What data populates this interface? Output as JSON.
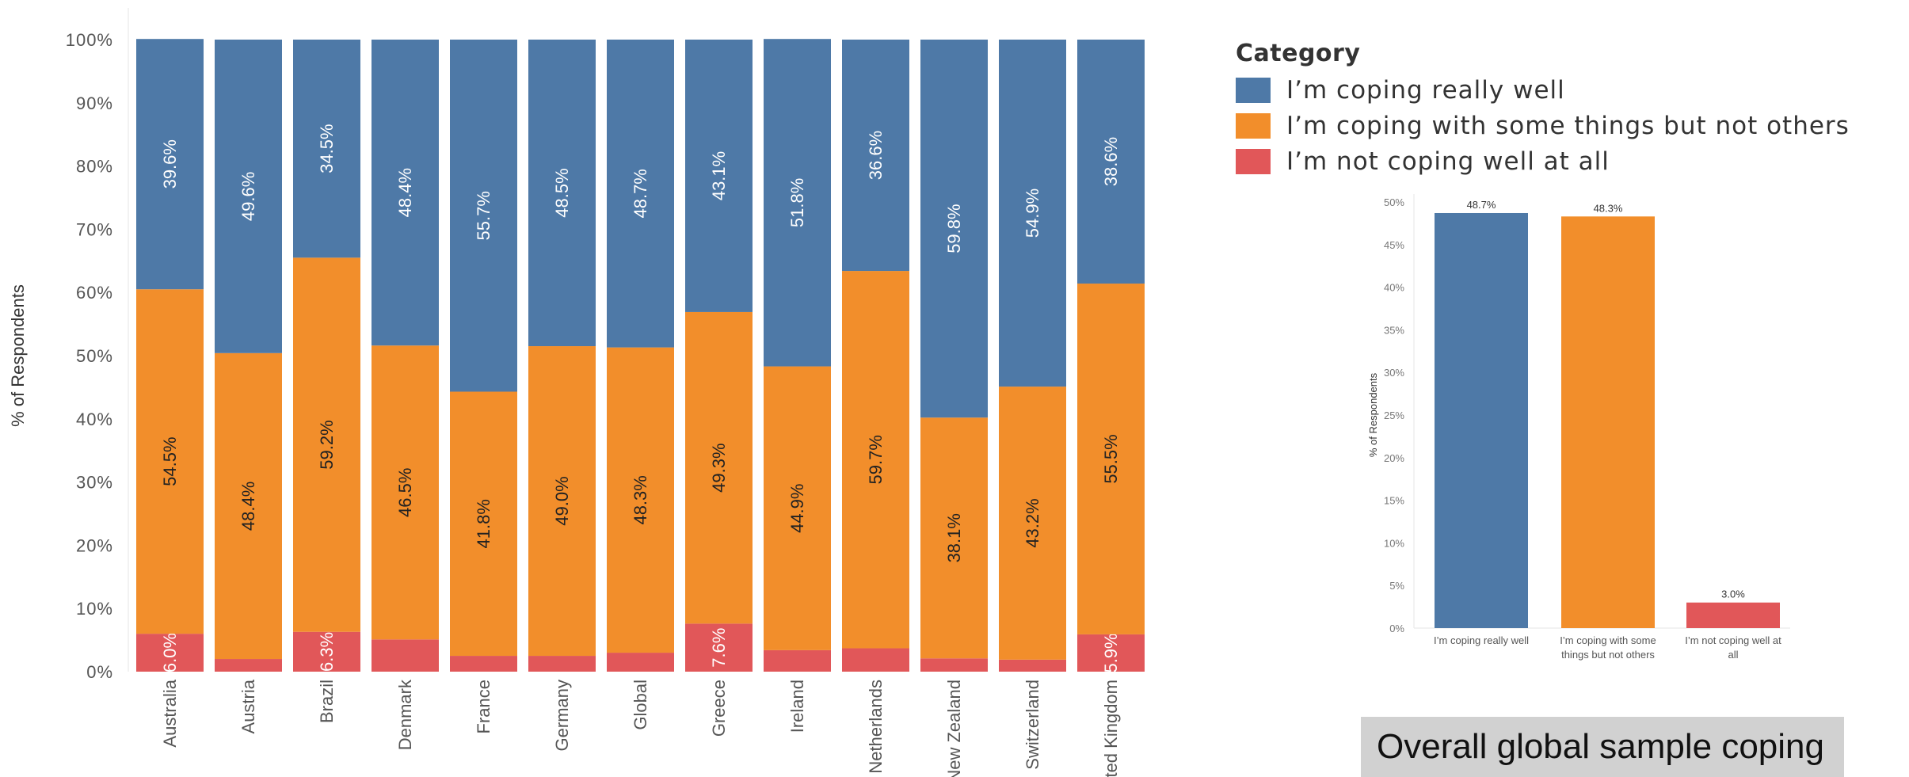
{
  "colors": {
    "coping_well": "#4e79a7",
    "coping_some": "#f28e2b",
    "not_coping": "#e15759"
  },
  "legend": {
    "title": "Category",
    "items": [
      {
        "label": "I’m coping really well",
        "color": "#4e79a7"
      },
      {
        "label": "I’m coping with some things but not others",
        "color": "#f28e2b"
      },
      {
        "label": "I’m not coping well at all",
        "color": "#e15759"
      }
    ]
  },
  "caption": "Overall global sample coping",
  "chart_data": [
    {
      "type": "bar",
      "stacked": true,
      "percent_stacked": true,
      "ylabel": "% of Respondents",
      "xlabel": "",
      "ylim": [
        0,
        100
      ],
      "y_ticks": [
        "0%",
        "10%",
        "20%",
        "30%",
        "40%",
        "50%",
        "60%",
        "70%",
        "80%",
        "90%",
        "100%"
      ],
      "categories": [
        "Australia",
        "Austria",
        "Brazil",
        "Denmark",
        "France",
        "Germany",
        "Global",
        "Greece",
        "Ireland",
        "Netherlands",
        "New Zealand",
        "Switzerland",
        "United Kingdom"
      ],
      "series": [
        {
          "name": "I’m not coping well at all",
          "values": [
            6.0,
            2.0,
            6.3,
            5.1,
            2.5,
            2.5,
            3.0,
            7.6,
            3.4,
            3.7,
            2.1,
            1.9,
            5.9
          ]
        },
        {
          "name": "I’m coping with some things but not others",
          "values": [
            54.5,
            48.4,
            59.2,
            46.5,
            41.8,
            49.0,
            48.3,
            49.3,
            44.9,
            59.7,
            38.1,
            43.2,
            55.5
          ]
        },
        {
          "name": "I’m coping really well",
          "values": [
            39.6,
            49.6,
            34.5,
            48.4,
            55.7,
            48.5,
            48.7,
            43.1,
            51.8,
            36.6,
            59.8,
            54.9,
            38.6
          ]
        }
      ],
      "data_labels": {
        "not_coping": [
          "6.0%",
          "",
          "6.3%",
          "",
          "",
          "",
          "",
          "7.6%",
          "",
          "",
          "",
          "",
          "5.9%"
        ],
        "coping_some": [
          "54.5%",
          "48.4%",
          "59.2%",
          "46.5%",
          "41.8%",
          "49.0%",
          "48.3%",
          "49.3%",
          "44.9%",
          "59.7%",
          "38.1%",
          "43.2%",
          "55.5%"
        ],
        "coping_well": [
          "39.6%",
          "49.6%",
          "34.5%",
          "48.4%",
          "55.7%",
          "48.5%",
          "48.7%",
          "43.1%",
          "51.8%",
          "36.6%",
          "59.8%",
          "54.9%",
          "38.6%"
        ]
      }
    },
    {
      "type": "bar",
      "ylabel": "% of Respondents",
      "xlabel": "",
      "ylim": [
        0,
        50
      ],
      "y_ticks": [
        "0%",
        "5%",
        "10%",
        "15%",
        "20%",
        "25%",
        "30%",
        "35%",
        "40%",
        "45%",
        "50%"
      ],
      "categories": [
        [
          "I’m coping really well"
        ],
        [
          "I’m coping with some",
          "things but not others"
        ],
        [
          "I’m not coping well at",
          "all"
        ]
      ],
      "values": [
        48.7,
        48.3,
        3.0
      ],
      "data_labels": [
        "48.7%",
        "48.3%",
        "3.0%"
      ]
    }
  ]
}
